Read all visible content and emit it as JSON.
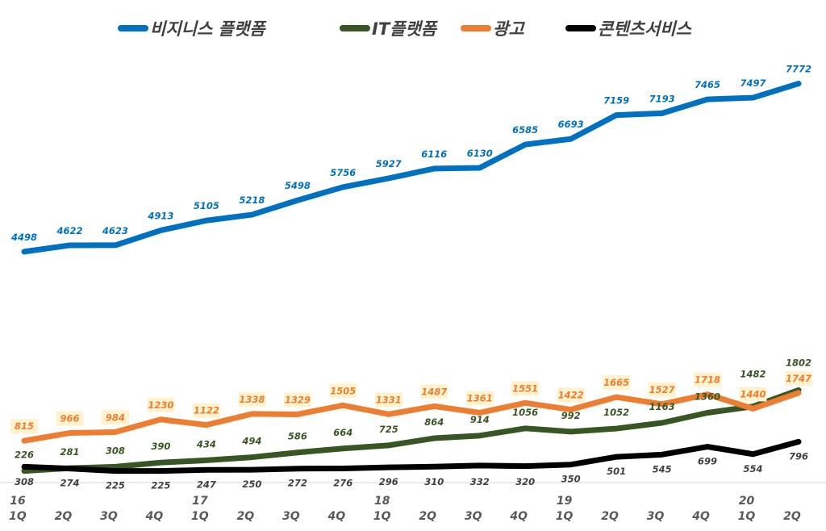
{
  "chart_data": {
    "type": "line",
    "title": "",
    "xlabel": "",
    "ylabel": "",
    "ylim": [
      0,
      9400
    ],
    "grid": false,
    "legend_position": "top",
    "categories": [
      "1Q",
      "2Q",
      "3Q",
      "4Q",
      "1Q",
      "2Q",
      "3Q",
      "4Q",
      "1Q",
      "2Q",
      "3Q",
      "4Q",
      "1Q",
      "2Q",
      "3Q",
      "4Q",
      "1Q",
      "2Q"
    ],
    "year_labels": [
      "16",
      "",
      "",
      "",
      "17",
      "",
      "",
      "",
      "18",
      "",
      "",
      "",
      "19",
      "",
      "",
      "",
      "20",
      ""
    ],
    "series": [
      {
        "name": "비지니스 플랫폼",
        "color": "#0070C0",
        "values": [
          4498,
          4622,
          4623,
          4913,
          5105,
          5218,
          5498,
          5756,
          5927,
          6116,
          6130,
          6585,
          6693,
          7159,
          7193,
          7465,
          7497,
          7772
        ]
      },
      {
        "name": "IT플랫폼",
        "color": "#375623",
        "values": [
          226,
          281,
          308,
          390,
          434,
          494,
          586,
          664,
          725,
          864,
          914,
          1056,
          992,
          1052,
          1163,
          1360,
          1482,
          1802
        ]
      },
      {
        "name": "광고",
        "color": "#ED7D31",
        "values": [
          815,
          966,
          984,
          1230,
          1122,
          1338,
          1329,
          1505,
          1331,
          1487,
          1361,
          1551,
          1422,
          1665,
          1527,
          1718,
          1440,
          1747
        ]
      },
      {
        "name": "콘텐츠서비스",
        "color": "#000000",
        "values": [
          308,
          274,
          225,
          225,
          247,
          250,
          272,
          276,
          296,
          310,
          332,
          320,
          350,
          501,
          545,
          699,
          554,
          796
        ]
      }
    ]
  }
}
